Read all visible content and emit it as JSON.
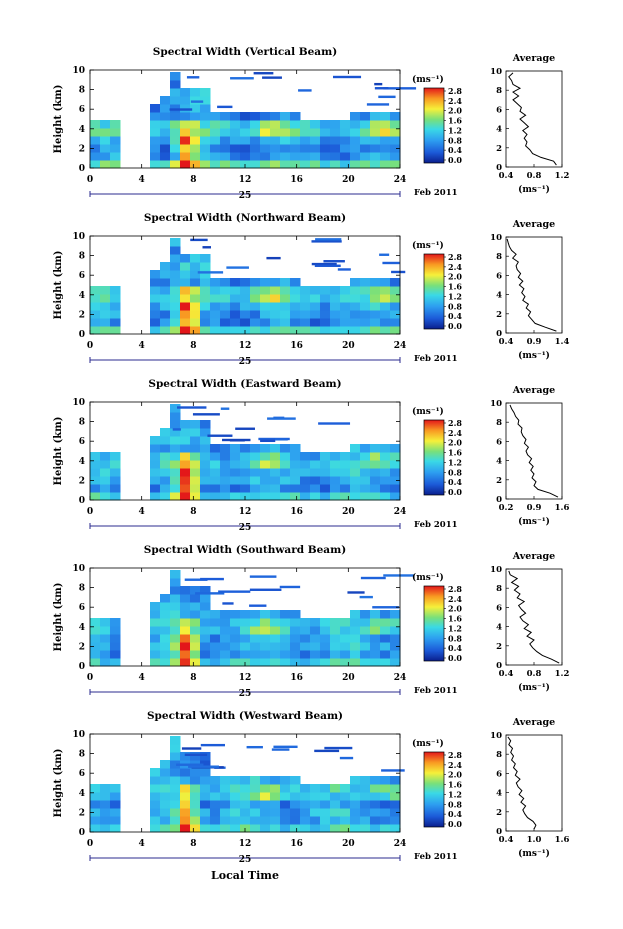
{
  "figure": {
    "date_label": "Feb 2011",
    "day_label": "25",
    "xlabel": "Local Time",
    "colorbar_unit": "(ms⁻¹)",
    "average_title": "Average",
    "average_unit": "(ms⁻¹)",
    "ylabel": "Height (km)"
  },
  "chart_data": [
    {
      "type": "heatmap",
      "title": "Spectral Width (Vertical Beam)",
      "xlabel": "Local Time",
      "ylabel": "Height (km)",
      "xlim": [
        0,
        24
      ],
      "ylim": [
        0,
        10
      ],
      "xticks": [
        0,
        4,
        8,
        12,
        16,
        20,
        24
      ],
      "yticks": [
        0,
        2,
        4,
        6,
        8,
        10
      ],
      "colorbar": {
        "unit": "(ms⁻¹)",
        "ticks": [
          0.0,
          0.4,
          0.8,
          1.2,
          1.6,
          2.0,
          2.4,
          2.8
        ],
        "tick_labels": [
          "0.0",
          "0.4",
          "0.8",
          "1.2",
          "1.6",
          "2.0",
          "2.4",
          "2.8"
        ]
      },
      "average": {
        "title": "Average",
        "xlabel": "(ms⁻¹)",
        "xlim": [
          0.4,
          1.2
        ],
        "xtick_labels": [
          "0.4",
          "0.8",
          "1.2"
        ],
        "height": [
          0.2,
          0.6,
          1.0,
          1.4,
          1.8,
          2.2,
          2.6,
          3.0,
          3.4,
          3.8,
          4.2,
          4.6,
          5.0,
          5.4,
          5.8,
          6.2,
          6.6,
          7.0,
          7.4,
          7.8,
          8.2,
          8.6,
          9.0,
          9.4,
          9.8
        ],
        "values": [
          1.12,
          1.08,
          0.9,
          0.78,
          0.74,
          0.68,
          0.7,
          0.66,
          0.7,
          0.64,
          0.72,
          0.66,
          0.6,
          0.68,
          0.6,
          0.62,
          0.56,
          0.5,
          0.58,
          0.5,
          0.6,
          0.5,
          0.48,
          0.44,
          0.5
        ]
      }
    },
    {
      "type": "heatmap",
      "title": "Spectral Width (Northward Beam)",
      "xlabel": "Local Time",
      "ylabel": "Height (km)",
      "xlim": [
        0,
        24
      ],
      "ylim": [
        0,
        10
      ],
      "xticks": [
        0,
        4,
        8,
        12,
        16,
        20,
        24
      ],
      "yticks": [
        0,
        2,
        4,
        6,
        8,
        10
      ],
      "colorbar": {
        "unit": "(ms⁻¹)",
        "ticks": [
          0.0,
          0.4,
          0.8,
          1.2,
          1.6,
          2.0,
          2.4,
          2.8
        ],
        "tick_labels": [
          "0.0",
          "0.4",
          "0.8",
          "1.2",
          "1.6",
          "2.0",
          "2.4",
          "2.8"
        ]
      },
      "average": {
        "title": "Average",
        "xlabel": "(ms⁻¹)",
        "xlim": [
          0.4,
          1.4
        ],
        "xtick_labels": [
          "0.4",
          "0.9",
          "1.4"
        ],
        "height": [
          0.2,
          0.6,
          1.0,
          1.4,
          1.8,
          2.2,
          2.6,
          3.0,
          3.4,
          3.8,
          4.2,
          4.6,
          5.0,
          5.4,
          5.8,
          6.2,
          6.6,
          7.0,
          7.4,
          7.8,
          8.2,
          8.6,
          9.0,
          9.4,
          9.8
        ],
        "values": [
          1.3,
          1.1,
          0.92,
          0.86,
          0.8,
          0.84,
          0.76,
          0.8,
          0.7,
          0.74,
          0.68,
          0.72,
          0.64,
          0.7,
          0.62,
          0.66,
          0.6,
          0.58,
          0.62,
          0.52,
          0.58,
          0.5,
          0.46,
          0.44,
          0.42
        ]
      }
    },
    {
      "type": "heatmap",
      "title": "Spectral Width (Eastward Beam)",
      "xlabel": "Local Time",
      "ylabel": "Height (km)",
      "xlim": [
        0,
        24
      ],
      "ylim": [
        0,
        10
      ],
      "xticks": [
        0,
        4,
        8,
        12,
        16,
        20,
        24
      ],
      "yticks": [
        0,
        2,
        4,
        6,
        8,
        10
      ],
      "colorbar": {
        "unit": "(ms⁻¹)",
        "ticks": [
          0.0,
          0.4,
          0.8,
          1.2,
          1.6,
          2.0,
          2.4,
          2.8
        ],
        "tick_labels": [
          "0.0",
          "0.4",
          "0.8",
          "1.2",
          "1.6",
          "2.0",
          "2.4",
          "2.8"
        ]
      },
      "average": {
        "title": "Average",
        "xlabel": "(ms⁻¹)",
        "xlim": [
          0.2,
          1.6
        ],
        "xtick_labels": [
          "0.2",
          "0.9",
          "1.6"
        ],
        "height": [
          0.2,
          0.6,
          1.0,
          1.4,
          1.8,
          2.2,
          2.6,
          3.0,
          3.4,
          3.8,
          4.2,
          4.6,
          5.0,
          5.4,
          5.8,
          6.2,
          6.6,
          7.0,
          7.4,
          7.8,
          8.2,
          8.6,
          9.0,
          9.4,
          9.8
        ],
        "values": [
          1.5,
          1.3,
          1.0,
          0.9,
          0.95,
          0.85,
          0.9,
          0.82,
          0.88,
          0.78,
          0.84,
          0.74,
          0.7,
          0.76,
          0.66,
          0.7,
          0.62,
          0.58,
          0.6,
          0.5,
          0.52,
          0.44,
          0.4,
          0.34,
          0.3
        ]
      }
    },
    {
      "type": "heatmap",
      "title": "Spectral Width (Southward Beam)",
      "xlabel": "Local Time",
      "ylabel": "Height (km)",
      "xlim": [
        0,
        24
      ],
      "ylim": [
        0,
        10
      ],
      "xticks": [
        0,
        4,
        8,
        12,
        16,
        20,
        24
      ],
      "yticks": [
        0,
        2,
        4,
        6,
        8,
        10
      ],
      "colorbar": {
        "unit": "(ms⁻¹)",
        "ticks": [
          0.0,
          0.4,
          0.8,
          1.2,
          1.6,
          2.0,
          2.4,
          2.8
        ],
        "tick_labels": [
          "0.0",
          "0.4",
          "0.8",
          "1.2",
          "1.6",
          "2.0",
          "2.4",
          "2.8"
        ]
      },
      "average": {
        "title": "Average",
        "xlabel": "(ms⁻¹)",
        "xlim": [
          0.4,
          1.2
        ],
        "xtick_labels": [
          "0.4",
          "0.8",
          "1.2"
        ],
        "height": [
          0.2,
          0.6,
          1.0,
          1.4,
          1.8,
          2.2,
          2.6,
          3.0,
          3.4,
          3.8,
          4.2,
          4.6,
          5.0,
          5.4,
          5.8,
          6.2,
          6.6,
          7.0,
          7.4,
          7.8,
          8.2,
          8.6,
          9.0,
          9.4,
          9.8
        ],
        "values": [
          1.16,
          1.05,
          0.92,
          0.84,
          0.78,
          0.74,
          0.8,
          0.7,
          0.76,
          0.66,
          0.72,
          0.64,
          0.6,
          0.68,
          0.62,
          0.58,
          0.66,
          0.56,
          0.6,
          0.52,
          0.58,
          0.48,
          0.56,
          0.46,
          0.44
        ]
      }
    },
    {
      "type": "heatmap",
      "title": "Spectral Width (Westward Beam)",
      "xlabel": "Local Time",
      "ylabel": "Height (km)",
      "xlim": [
        0,
        24
      ],
      "ylim": [
        0,
        10
      ],
      "xticks": [
        0,
        4,
        8,
        12,
        16,
        20,
        24
      ],
      "yticks": [
        0,
        2,
        4,
        6,
        8,
        10
      ],
      "colorbar": {
        "unit": "(ms⁻¹)",
        "ticks": [
          0.0,
          0.4,
          0.8,
          1.2,
          1.6,
          2.0,
          2.4,
          2.8
        ],
        "tick_labels": [
          "0.0",
          "0.4",
          "0.8",
          "1.2",
          "1.6",
          "2.0",
          "2.4",
          "2.8"
        ]
      },
      "average": {
        "title": "Average",
        "xlabel": "(ms⁻¹)",
        "xlim": [
          0.4,
          1.6
        ],
        "xtick_labels": [
          "0.4",
          "1.0",
          "1.6"
        ],
        "height": [
          0.2,
          0.6,
          1.0,
          1.4,
          1.8,
          2.2,
          2.6,
          3.0,
          3.4,
          3.8,
          4.2,
          4.6,
          5.0,
          5.4,
          5.8,
          6.2,
          6.6,
          7.0,
          7.4,
          7.8,
          8.2,
          8.6,
          9.0,
          9.4,
          9.8
        ],
        "values": [
          1.0,
          1.04,
          0.98,
          0.86,
          0.8,
          0.76,
          0.82,
          0.72,
          0.78,
          0.68,
          0.74,
          0.66,
          0.62,
          0.7,
          0.6,
          0.64,
          0.56,
          0.6,
          0.52,
          0.56,
          0.5,
          0.54,
          0.46,
          0.5,
          0.44
        ]
      }
    }
  ]
}
